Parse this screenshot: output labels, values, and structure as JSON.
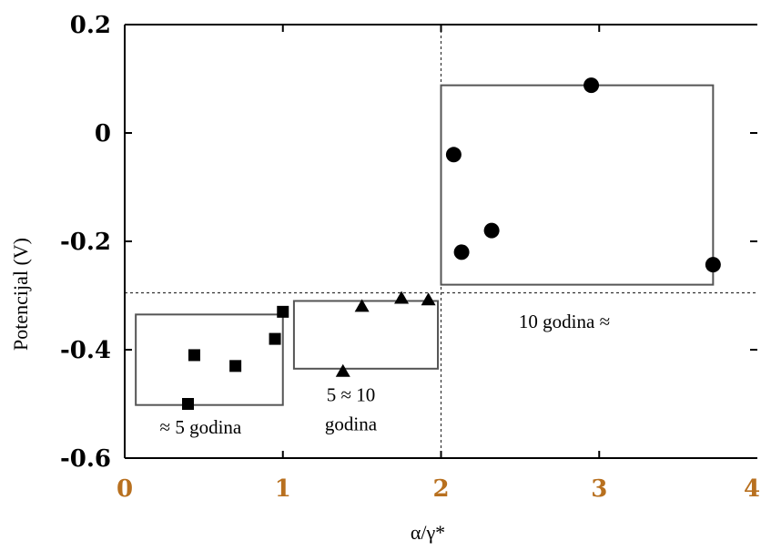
{
  "chart_data": {
    "type": "scatter",
    "xlabel": "α/γ*",
    "ylabel": "Potencijal (V)",
    "xlim": [
      0,
      4
    ],
    "ylim": [
      -0.6,
      0.2
    ],
    "x_ticks": [
      0,
      1,
      2,
      3,
      4
    ],
    "y_ticks": [
      0.2,
      0,
      -0.2,
      -0.4,
      -0.6
    ],
    "x_tick_labels": [
      "0",
      "1",
      "2",
      "3",
      "4"
    ],
    "y_tick_labels": [
      "0.2",
      "0",
      "-0.2",
      "-0.4",
      "-0.6"
    ],
    "colors": {
      "axis": "#000000",
      "x_tick_text": "#b8701f",
      "markers": "#000000",
      "boxes": "#555555"
    },
    "reference_lines": [
      {
        "orientation": "vertical",
        "x": 2.0,
        "style": "dashed"
      },
      {
        "orientation": "horizontal",
        "y": -0.295,
        "style": "dashed"
      }
    ],
    "series": [
      {
        "marker": "square",
        "points": [
          {
            "x": 0.4,
            "y": -0.5
          },
          {
            "x": 0.44,
            "y": -0.41
          },
          {
            "x": 0.7,
            "y": -0.43
          },
          {
            "x": 0.95,
            "y": -0.38
          },
          {
            "x": 1.0,
            "y": -0.33
          }
        ]
      },
      {
        "marker": "triangle",
        "points": [
          {
            "x": 1.38,
            "y": -0.44
          },
          {
            "x": 1.5,
            "y": -0.32
          },
          {
            "x": 1.75,
            "y": -0.305
          },
          {
            "x": 1.92,
            "y": -0.308
          }
        ]
      },
      {
        "marker": "circle",
        "points": [
          {
            "x": 2.08,
            "y": -0.04
          },
          {
            "x": 2.13,
            "y": -0.22
          },
          {
            "x": 2.32,
            "y": -0.18
          },
          {
            "x": 2.95,
            "y": 0.088
          },
          {
            "x": 3.72,
            "y": -0.243
          }
        ]
      }
    ],
    "groups": [
      {
        "x0": 0.07,
        "x1": 1.0,
        "y0": -0.502,
        "y1": -0.335,
        "label_lines": [
          "≈ 5 godina"
        ],
        "label_x": 0.48,
        "label_y": -0.555
      },
      {
        "x0": 1.07,
        "x1": 1.98,
        "y0": -0.435,
        "y1": -0.31,
        "label_lines": [
          "5 ≈ 10",
          "godina"
        ],
        "label_x": 1.43,
        "label_y": -0.495
      },
      {
        "x0": 2.0,
        "x1": 3.72,
        "y0": -0.28,
        "y1": 0.088,
        "label_lines": [
          "10 godina ≈"
        ],
        "label_x": 2.78,
        "label_y": -0.36
      }
    ]
  }
}
